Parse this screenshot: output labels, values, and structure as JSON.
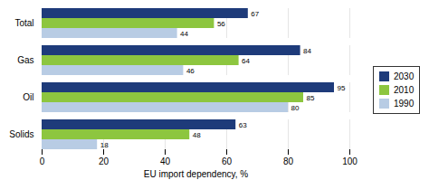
{
  "chart_data": {
    "type": "bar",
    "orientation": "horizontal",
    "categories": [
      "Solids",
      "Oil",
      "Gas",
      "Total"
    ],
    "series": [
      {
        "name": "2030",
        "color": "#1e3b7a",
        "values": [
          63,
          95,
          84,
          67
        ]
      },
      {
        "name": "2010",
        "color": "#8dc63f",
        "values": [
          48,
          85,
          64,
          56
        ]
      },
      {
        "name": "1990",
        "color": "#b8cce4",
        "values": [
          18,
          80,
          46,
          44
        ]
      }
    ],
    "xlabel": "EU import dependency, %",
    "xlim": [
      0,
      100
    ],
    "xticks": [
      0,
      20,
      40,
      60,
      80,
      100
    ],
    "grid": true,
    "data_labels": true,
    "legend": "right"
  }
}
